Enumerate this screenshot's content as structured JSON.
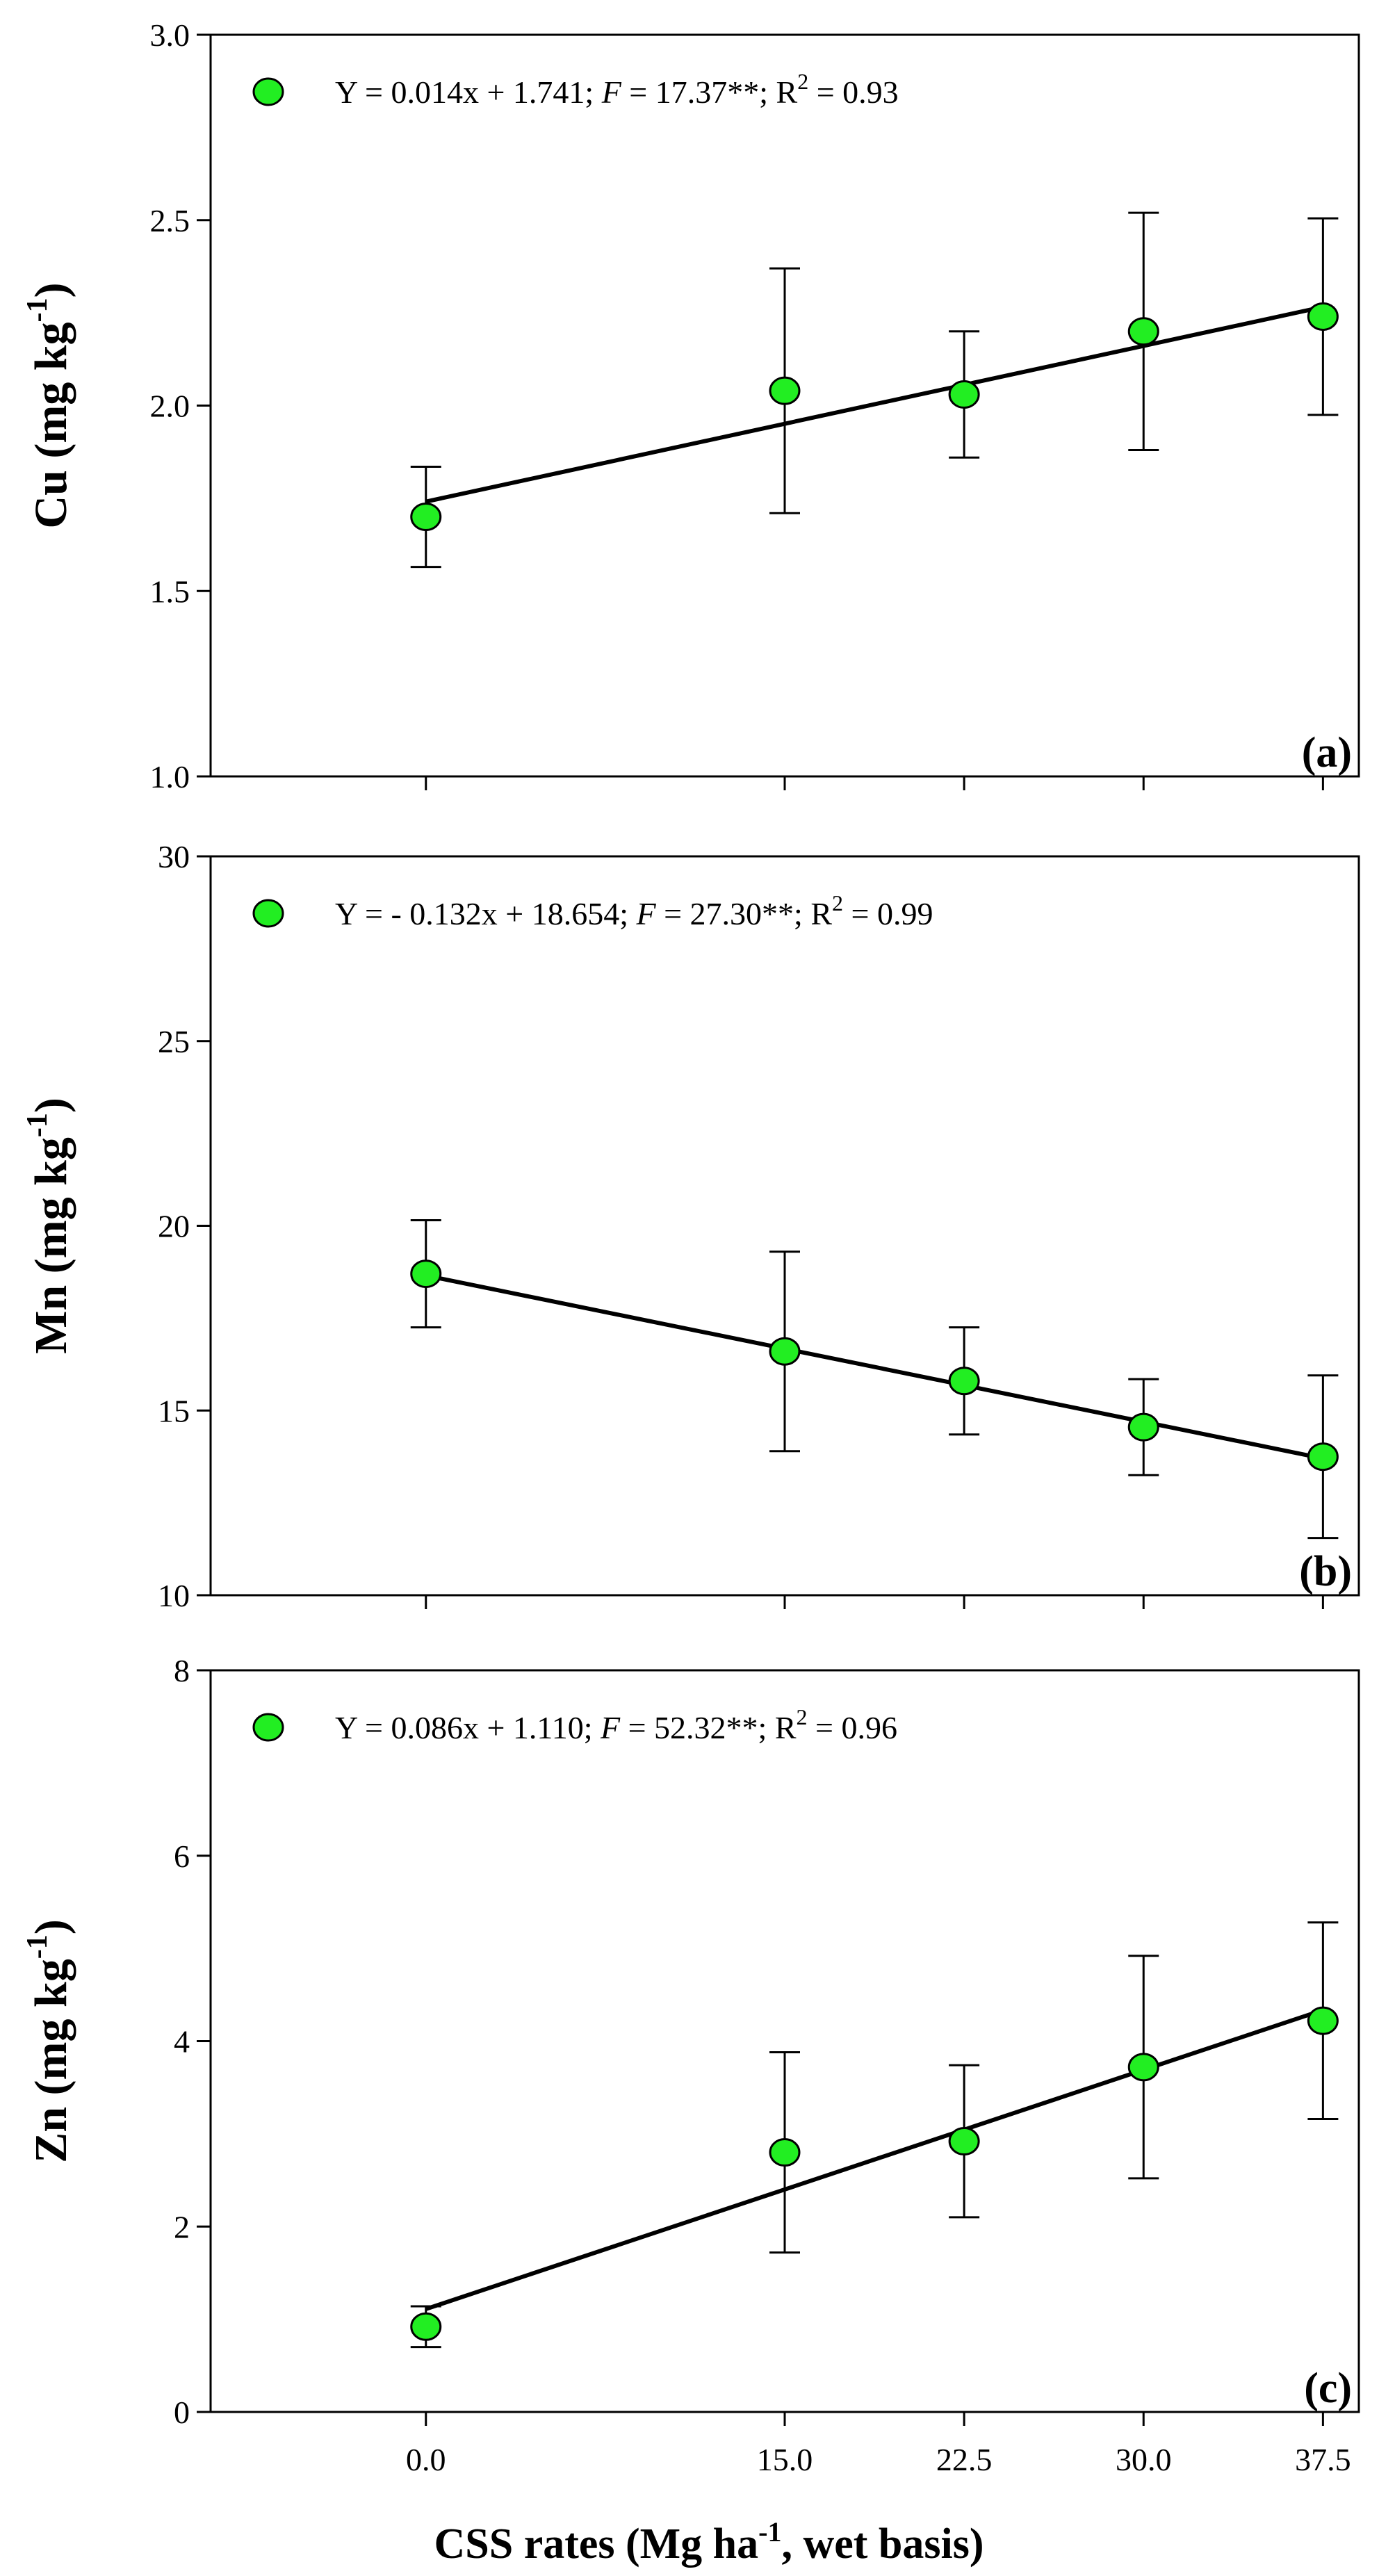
{
  "chart_data": [
    {
      "type": "scatter",
      "panel_label": "(a)",
      "ylabel": {
        "element": "Cu",
        "unit": "(mg kg",
        "exponent": "-1",
        "close": ")"
      },
      "ylim": [
        1.0,
        3.0
      ],
      "yticks": [
        "1.0",
        "1.5",
        "2.0",
        "2.5",
        "3.0"
      ],
      "xlim": [
        -9,
        39
      ],
      "x": [
        0,
        15,
        22.5,
        30,
        37.5
      ],
      "series": [
        {
          "name": "Cu",
          "values": [
            1.7,
            2.04,
            2.03,
            2.2,
            2.24
          ],
          "errors": [
            0.135,
            0.33,
            0.17,
            0.32,
            0.265
          ]
        }
      ],
      "fit": {
        "slope": 0.014,
        "intercept": 1.741
      },
      "legend": {
        "pre": "Y = 0.014x + 1.741; ",
        "f_symbol": "F",
        "post": " = 17.37**; R",
        "sup": "2",
        "tail": " = 0.93"
      },
      "marker_color": "#22ee22"
    },
    {
      "type": "scatter",
      "panel_label": "(b)",
      "ylabel": {
        "element": "Mn",
        "unit": "(mg kg",
        "exponent": "-1",
        "close": ")"
      },
      "ylim": [
        10,
        30
      ],
      "yticks": [
        "10",
        "15",
        "20",
        "25",
        "30"
      ],
      "xlim": [
        -9,
        39
      ],
      "x": [
        0,
        15,
        22.5,
        30,
        37.5
      ],
      "series": [
        {
          "name": "Mn",
          "values": [
            18.7,
            16.6,
            15.8,
            14.55,
            13.75
          ],
          "errors": [
            1.45,
            2.7,
            1.45,
            1.3,
            2.2
          ]
        }
      ],
      "fit": {
        "slope": -0.132,
        "intercept": 18.654
      },
      "legend": {
        "pre": "Y = - 0.132x + 18.654; ",
        "f_symbol": "F",
        "post": " = 27.30**; R",
        "sup": "2",
        "tail": " = 0.99"
      },
      "marker_color": "#22ee22"
    },
    {
      "type": "scatter",
      "panel_label": "(c)",
      "ylabel": {
        "element": "Zn",
        "unit": "(mg kg",
        "exponent": "-1",
        "close": ")"
      },
      "ylim": [
        0,
        8
      ],
      "yticks": [
        "0",
        "2",
        "4",
        "6",
        "8"
      ],
      "xlim": [
        -9,
        39
      ],
      "x": [
        0,
        15,
        22.5,
        30,
        37.5
      ],
      "xticks": [
        0,
        15,
        22.5,
        30,
        37.5
      ],
      "xticklabels": [
        "0.0",
        "15.0",
        "22.5",
        "30.0",
        "37.5"
      ],
      "series": [
        {
          "name": "Zn",
          "values": [
            0.92,
            2.8,
            2.92,
            3.72,
            4.22
          ],
          "errors": [
            0.22,
            1.08,
            0.82,
            1.2,
            1.06
          ]
        }
      ],
      "fit": {
        "slope": 0.086,
        "intercept": 1.11
      },
      "legend": {
        "pre": "Y = 0.086x + 1.110; ",
        "f_symbol": "F",
        "post": " = 52.32**; R",
        "sup": "2",
        "tail": " = 0.96"
      },
      "marker_color": "#22ee22"
    }
  ],
  "xaxis_title": {
    "pre": "CSS rates (Mg ha",
    "sup": "-1",
    "post": ", wet basis)"
  }
}
